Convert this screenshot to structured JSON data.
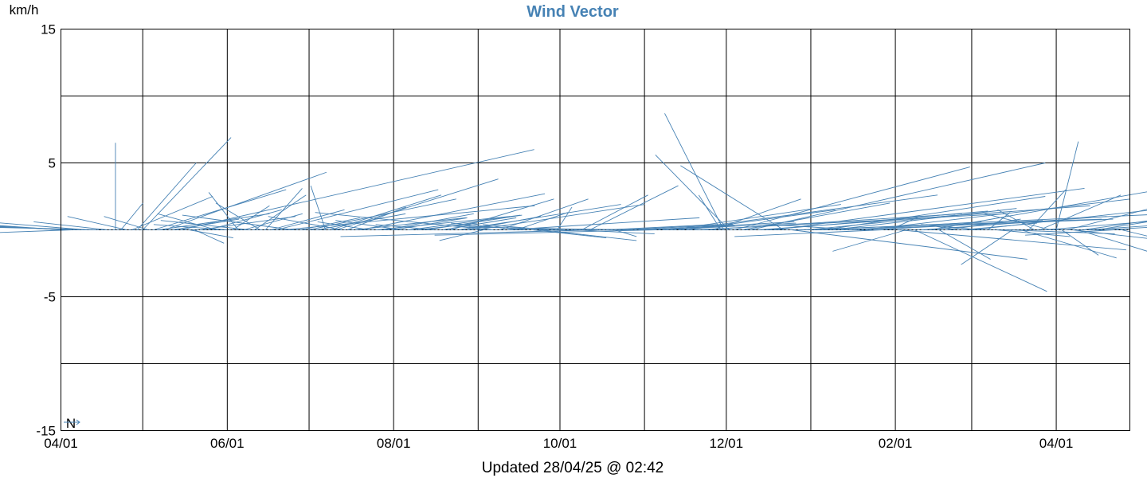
{
  "chart_data": {
    "type": "vector",
    "title": "Wind Vector",
    "unit_label": "km/h",
    "footer": "Updated 28/04/25 @ 02:42",
    "north_marker": "N",
    "series_color": "#4682b4",
    "title_color": "#4682b4",
    "grid": true,
    "ylim": [
      -15,
      15
    ],
    "y_ticks": [
      "15",
      "5",
      "-5",
      "-15"
    ],
    "x_ticks": [
      "04/01",
      "06/01",
      "08/01",
      "10/01",
      "12/01",
      "02/01",
      "04/01"
    ],
    "x_tick_dates": [
      "2024-04-01",
      "2024-06-01",
      "2024-08-01",
      "2024-10-01",
      "2024-12-01",
      "2025-02-01",
      "2025-04-01"
    ],
    "xlim": [
      "2024-04-01",
      "2025-04-28"
    ],
    "vectors": [
      {
        "date": "2024-04-01",
        "u": -4.5,
        "v": 1.7
      },
      {
        "date": "2024-04-02",
        "u": -4.0,
        "v": 1.2
      },
      {
        "date": "2024-04-03",
        "u": -3.2,
        "v": 0.9
      },
      {
        "date": "2024-04-05",
        "u": -3.0,
        "v": -0.6
      },
      {
        "date": "2024-04-08",
        "u": -2.5,
        "v": 0.5
      },
      {
        "date": "2024-04-10",
        "u": -1.8,
        "v": 0.8
      },
      {
        "date": "2024-04-14",
        "u": -2.2,
        "v": 0.3
      },
      {
        "date": "2024-04-18",
        "u": -1.0,
        "v": 0.6
      },
      {
        "date": "2024-04-21",
        "u": 0.0,
        "v": 6.5
      },
      {
        "date": "2024-04-23",
        "u": 0.3,
        "v": 2.0
      },
      {
        "date": "2024-04-25",
        "u": -0.8,
        "v": 1.0
      },
      {
        "date": "2024-04-27",
        "u": 1.1,
        "v": 2.5
      },
      {
        "date": "2024-04-29",
        "u": 0.8,
        "v": 5.0
      },
      {
        "date": "2024-05-01",
        "u": 1.2,
        "v": 6.9
      },
      {
        "date": "2024-05-03",
        "u": -0.6,
        "v": 1.0
      },
      {
        "date": "2024-05-05",
        "u": 1.8,
        "v": 3.0
      },
      {
        "date": "2024-05-07",
        "u": 1.5,
        "v": 1.2
      },
      {
        "date": "2024-05-09",
        "u": 2.2,
        "v": 4.3
      },
      {
        "date": "2024-05-12",
        "u": 0.9,
        "v": 0.8
      },
      {
        "date": "2024-05-15",
        "u": 4.8,
        "v": 6.0
      },
      {
        "date": "2024-05-18",
        "u": 0.6,
        "v": -0.6
      },
      {
        "date": "2024-05-20",
        "u": 0.4,
        "v": -1.0
      },
      {
        "date": "2024-05-22",
        "u": 1.3,
        "v": 1.0
      },
      {
        "date": "2024-05-25",
        "u": 1.0,
        "v": 1.5
      },
      {
        "date": "2024-05-28",
        "u": -0.8,
        "v": 1.2
      },
      {
        "date": "2024-06-01",
        "u": -1.0,
        "v": 0.4
      },
      {
        "date": "2024-06-03",
        "u": 0.5,
        "v": 1.8
      },
      {
        "date": "2024-06-05",
        "u": -0.4,
        "v": 2.8
      },
      {
        "date": "2024-06-07",
        "u": 0.8,
        "v": 1.2
      },
      {
        "date": "2024-06-09",
        "u": -1.2,
        "v": 0.7
      },
      {
        "date": "2024-06-11",
        "u": 0.7,
        "v": 2.6
      },
      {
        "date": "2024-06-13",
        "u": -0.6,
        "v": 2.0
      },
      {
        "date": "2024-06-15",
        "u": 0.5,
        "v": 3.1
      },
      {
        "date": "2024-06-17",
        "u": 1.0,
        "v": 1.5
      },
      {
        "date": "2024-06-19",
        "u": 2.2,
        "v": 3.0
      },
      {
        "date": "2024-06-22",
        "u": 3.4,
        "v": 1.8
      },
      {
        "date": "2024-06-25",
        "u": -1.5,
        "v": 1.1
      },
      {
        "date": "2024-06-28",
        "u": 0.8,
        "v": 0.9
      },
      {
        "date": "2024-07-01",
        "u": 2.0,
        "v": 2.3
      },
      {
        "date": "2024-07-04",
        "u": 1.2,
        "v": 1.2
      },
      {
        "date": "2024-07-07",
        "u": -0.2,
        "v": 3.3
      },
      {
        "date": "2024-07-09",
        "u": 1.5,
        "v": 2.6
      },
      {
        "date": "2024-07-11",
        "u": 2.2,
        "v": 3.8
      },
      {
        "date": "2024-07-13",
        "u": -1.0,
        "v": 1.0
      },
      {
        "date": "2024-07-15",
        "u": 0.8,
        "v": 1.7
      },
      {
        "date": "2024-07-18",
        "u": 1.5,
        "v": 0.9
      },
      {
        "date": "2024-07-20",
        "u": 2.5,
        "v": 2.7
      },
      {
        "date": "2024-07-23",
        "u": -0.7,
        "v": 0.6
      },
      {
        "date": "2024-07-26",
        "u": 1.8,
        "v": 1.0
      },
      {
        "date": "2024-07-29",
        "u": 1.2,
        "v": 1.2
      },
      {
        "date": "2024-08-01",
        "u": 1.0,
        "v": 0.9
      },
      {
        "date": "2024-08-04",
        "u": -0.9,
        "v": 0.7
      },
      {
        "date": "2024-08-07",
        "u": 1.5,
        "v": 1.1
      },
      {
        "date": "2024-08-10",
        "u": 0.8,
        "v": 0.5
      },
      {
        "date": "2024-08-13",
        "u": 1.3,
        "v": 1.1
      },
      {
        "date": "2024-08-16",
        "u": -0.8,
        "v": 0.4
      },
      {
        "date": "2024-08-19",
        "u": 1.0,
        "v": 0.9
      },
      {
        "date": "2024-08-22",
        "u": 1.4,
        "v": 2.3
      },
      {
        "date": "2024-08-25",
        "u": 2.2,
        "v": 1.9
      },
      {
        "date": "2024-08-28",
        "u": 1.0,
        "v": 1.0
      },
      {
        "date": "2024-08-31",
        "u": 2.3,
        "v": 1.9
      },
      {
        "date": "2024-09-03",
        "u": -0.6,
        "v": -0.8
      },
      {
        "date": "2024-09-06",
        "u": -2.4,
        "v": 1.3
      },
      {
        "date": "2024-09-09",
        "u": 1.2,
        "v": 2.3
      },
      {
        "date": "2024-09-12",
        "u": 2.6,
        "v": 0.9
      },
      {
        "date": "2024-09-15",
        "u": 0.7,
        "v": 1.3
      },
      {
        "date": "2024-09-18",
        "u": -1.0,
        "v": 0.5
      },
      {
        "date": "2024-09-21",
        "u": 1.0,
        "v": -0.6
      },
      {
        "date": "2024-09-24",
        "u": 1.3,
        "v": -0.8
      },
      {
        "date": "2024-09-27",
        "u": -0.9,
        "v": 0.4
      },
      {
        "date": "2024-09-30",
        "u": 0.2,
        "v": 1.7
      },
      {
        "date": "2024-10-03",
        "u": -1.5,
        "v": 0.3
      },
      {
        "date": "2024-10-06",
        "u": 1.1,
        "v": -0.3
      },
      {
        "date": "2024-10-09",
        "u": 0.9,
        "v": 2.6
      },
      {
        "date": "2024-10-12",
        "u": 1.2,
        "v": 3.3
      },
      {
        "date": "2024-10-15",
        "u": -3.5,
        "v": -0.5
      },
      {
        "date": "2024-10-18",
        "u": 1.5,
        "v": 0.4
      },
      {
        "date": "2024-10-21",
        "u": 0.3,
        "v": -0.5
      },
      {
        "date": "2024-10-24",
        "u": 1.5,
        "v": 0.4
      },
      {
        "date": "2024-10-27",
        "u": -2.2,
        "v": 0.2
      },
      {
        "date": "2024-10-30",
        "u": 1.3,
        "v": 0.3
      },
      {
        "date": "2024-11-02",
        "u": 2.0,
        "v": 0.6
      },
      {
        "date": "2024-11-05",
        "u": -3.0,
        "v": -0.4
      },
      {
        "date": "2024-11-08",
        "u": 1.8,
        "v": 0.5
      },
      {
        "date": "2024-11-11",
        "u": 2.3,
        "v": 1.9
      },
      {
        "date": "2024-11-14",
        "u": 3.5,
        "v": 2.6
      },
      {
        "date": "2024-11-17",
        "u": 2.0,
        "v": 1.5
      },
      {
        "date": "2024-11-20",
        "u": 4.2,
        "v": 1.2
      },
      {
        "date": "2024-11-23",
        "u": 3.5,
        "v": 1.2
      },
      {
        "date": "2024-11-26",
        "u": 1.2,
        "v": 2.3
      },
      {
        "date": "2024-11-29",
        "u": -0.3,
        "v": 2.6
      },
      {
        "date": "2024-11-30",
        "u": -0.8,
        "v": 8.7
      },
      {
        "date": "2024-12-02",
        "u": -1.0,
        "v": 5.6
      },
      {
        "date": "2024-12-04",
        "u": 3.2,
        "v": 4.7
      },
      {
        "date": "2024-12-07",
        "u": 2.0,
        "v": 2.0
      },
      {
        "date": "2024-12-10",
        "u": 4.0,
        "v": 5.0
      },
      {
        "date": "2024-12-13",
        "u": 4.5,
        "v": 1.8
      },
      {
        "date": "2024-12-16",
        "u": 3.0,
        "v": 1.4
      },
      {
        "date": "2024-12-19",
        "u": 4.2,
        "v": 3.1
      },
      {
        "date": "2024-12-22",
        "u": -1.4,
        "v": 4.8
      },
      {
        "date": "2024-12-25",
        "u": 3.2,
        "v": -2.2
      },
      {
        "date": "2024-12-28",
        "u": 4.1,
        "v": 0.8
      },
      {
        "date": "2024-12-31",
        "u": 2.0,
        "v": 1.1
      },
      {
        "date": "2025-01-03",
        "u": 4.8,
        "v": 1.2
      },
      {
        "date": "2025-01-06",
        "u": 3.0,
        "v": 2.5
      },
      {
        "date": "2025-01-09",
        "u": 2.5,
        "v": 1.6
      },
      {
        "date": "2025-01-12",
        "u": 3.7,
        "v": 0.8
      },
      {
        "date": "2025-01-15",
        "u": 1.8,
        "v": 0.6
      },
      {
        "date": "2025-01-18",
        "u": -1.2,
        "v": 0.4
      },
      {
        "date": "2025-01-21",
        "u": 3.6,
        "v": 2.3
      },
      {
        "date": "2025-01-24",
        "u": 2.3,
        "v": 0.7
      },
      {
        "date": "2025-01-27",
        "u": -2.0,
        "v": -0.5
      },
      {
        "date": "2025-01-30",
        "u": 0.4,
        "v": 1.0
      },
      {
        "date": "2025-02-02",
        "u": 3.1,
        "v": -1.5
      },
      {
        "date": "2025-02-05",
        "u": -1.0,
        "v": -1.6
      },
      {
        "date": "2025-02-08",
        "u": 1.8,
        "v": -4.6
      },
      {
        "date": "2025-02-11",
        "u": 2.5,
        "v": 1.0
      },
      {
        "date": "2025-02-14",
        "u": 3.0,
        "v": 2.9
      },
      {
        "date": "2025-02-17",
        "u": 0.7,
        "v": -2.2
      },
      {
        "date": "2025-02-20",
        "u": 1.0,
        "v": 0.8
      },
      {
        "date": "2025-02-23",
        "u": -0.4,
        "v": 0.4
      },
      {
        "date": "2025-02-26",
        "u": 1.0,
        "v": 0.5
      },
      {
        "date": "2025-03-01",
        "u": 2.8,
        "v": 1.7
      },
      {
        "date": "2025-03-04",
        "u": -0.8,
        "v": 0.4
      },
      {
        "date": "2025-03-07",
        "u": 0.3,
        "v": 1.3
      },
      {
        "date": "2025-03-10",
        "u": 1.0,
        "v": -0.5
      },
      {
        "date": "2025-03-13",
        "u": 1.5,
        "v": -0.3
      },
      {
        "date": "2025-03-16",
        "u": -0.7,
        "v": -2.6
      },
      {
        "date": "2025-03-19",
        "u": 1.3,
        "v": -2.1
      },
      {
        "date": "2025-03-22",
        "u": 0.5,
        "v": 3.0
      },
      {
        "date": "2025-03-24",
        "u": -0.5,
        "v": 1.5
      },
      {
        "date": "2025-03-26",
        "u": 1.1,
        "v": 2.6
      },
      {
        "date": "2025-03-28",
        "u": 1.8,
        "v": 0.8
      },
      {
        "date": "2025-03-30",
        "u": -0.9,
        "v": 1.2
      },
      {
        "date": "2025-04-01",
        "u": 0.3,
        "v": 6.6
      },
      {
        "date": "2025-04-03",
        "u": 0.5,
        "v": -1.9
      },
      {
        "date": "2025-04-05",
        "u": 1.2,
        "v": 1.7
      },
      {
        "date": "2025-04-07",
        "u": 1.9,
        "v": -1.2
      },
      {
        "date": "2025-04-09",
        "u": 2.0,
        "v": -3.4
      },
      {
        "date": "2025-04-11",
        "u": 3.5,
        "v": 2.7
      },
      {
        "date": "2025-04-13",
        "u": 1.6,
        "v": 0.6
      },
      {
        "date": "2025-04-16",
        "u": 3.2,
        "v": 2.8
      },
      {
        "date": "2025-04-19",
        "u": 2.5,
        "v": 0.8
      },
      {
        "date": "2025-04-22",
        "u": -1.2,
        "v": -0.4
      },
      {
        "date": "2025-04-25",
        "u": 0.6,
        "v": -0.8
      }
    ]
  }
}
